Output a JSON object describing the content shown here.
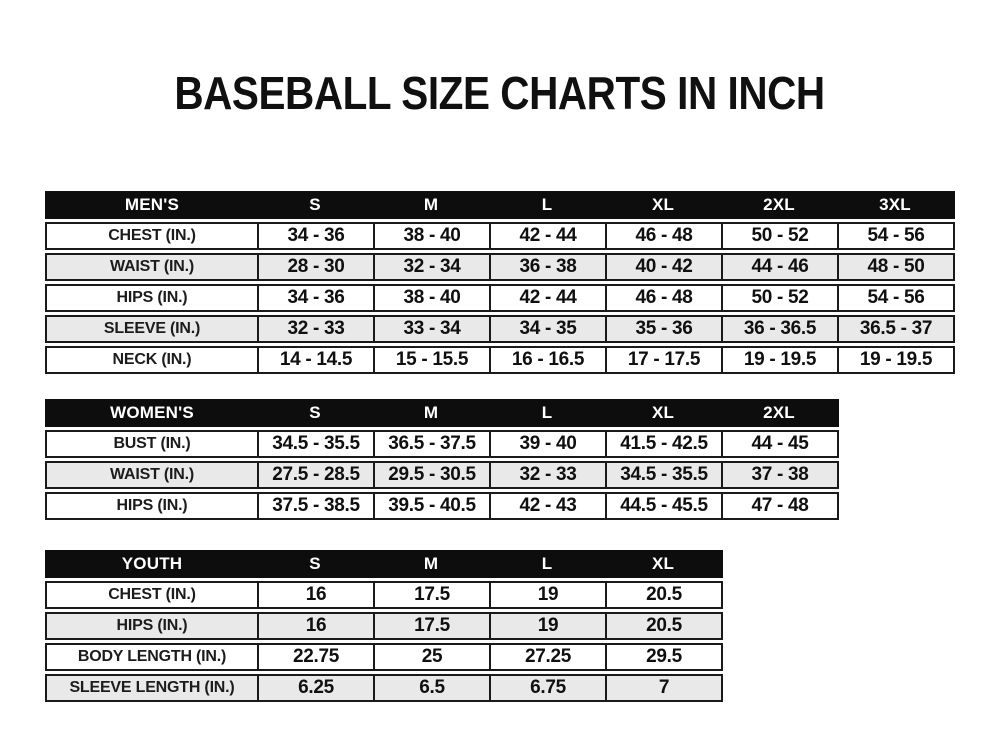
{
  "page": {
    "title": "BASEBALL SIZE CHARTS IN INCH"
  },
  "colors": {
    "header_bg": "#0d0d0d",
    "header_text": "#ffffff",
    "row_alt_bg": "#e9e9e9",
    "border": "#1a1a1a",
    "ink": "#101010",
    "page_bg": "#ffffff"
  },
  "tables": [
    {
      "id": "mens",
      "header": [
        "MEN'S",
        "S",
        "M",
        "L",
        "XL",
        "2XL",
        "3XL"
      ],
      "rows": [
        {
          "label": "CHEST (IN.)",
          "values": [
            "34 - 36",
            "38 - 40",
            "42 - 44",
            "46 - 48",
            "50 - 52",
            "54 - 56"
          ]
        },
        {
          "label": "WAIST (IN.)",
          "values": [
            "28 - 30",
            "32 - 34",
            "36 - 38",
            "40 - 42",
            "44 - 46",
            "48 - 50"
          ]
        },
        {
          "label": "HIPS (IN.)",
          "values": [
            "34 - 36",
            "38 - 40",
            "42 - 44",
            "46 - 48",
            "50 - 52",
            "54 - 56"
          ]
        },
        {
          "label": "SLEEVE (IN.)",
          "values": [
            "32 - 33",
            "33 - 34",
            "34 - 35",
            "35 - 36",
            "36 - 36.5",
            "36.5 - 37"
          ]
        },
        {
          "label": "NECK (IN.)",
          "values": [
            "14 - 14.5",
            "15 - 15.5",
            "16 - 16.5",
            "17 - 17.5",
            "19 - 19.5",
            "19 - 19.5"
          ]
        }
      ]
    },
    {
      "id": "womens",
      "header": [
        "WOMEN'S",
        "S",
        "M",
        "L",
        "XL",
        "2XL"
      ],
      "rows": [
        {
          "label": "BUST (IN.)",
          "values": [
            "34.5 - 35.5",
            "36.5 - 37.5",
            "39 - 40",
            "41.5 - 42.5",
            "44 - 45"
          ]
        },
        {
          "label": "WAIST (IN.)",
          "values": [
            "27.5 - 28.5",
            "29.5 - 30.5",
            "32 - 33",
            "34.5 - 35.5",
            "37 - 38"
          ]
        },
        {
          "label": "HIPS (IN.)",
          "values": [
            "37.5 - 38.5",
            "39.5 - 40.5",
            "42 - 43",
            "44.5 - 45.5",
            "47 - 48"
          ]
        }
      ]
    },
    {
      "id": "youth",
      "header": [
        "YOUTH",
        "S",
        "M",
        "L",
        "XL"
      ],
      "rows": [
        {
          "label": "CHEST (IN.)",
          "values": [
            "16",
            "17.5",
            "19",
            "20.5"
          ]
        },
        {
          "label": "HIPS (IN.)",
          "values": [
            "16",
            "17.5",
            "19",
            "20.5"
          ]
        },
        {
          "label": "BODY LENGTH (IN.)",
          "values": [
            "22.75",
            "25",
            "27.25",
            "29.5"
          ]
        },
        {
          "label": "SLEEVE LENGTH (IN.)",
          "values": [
            "6.25",
            "6.5",
            "6.75",
            "7"
          ]
        }
      ]
    }
  ]
}
